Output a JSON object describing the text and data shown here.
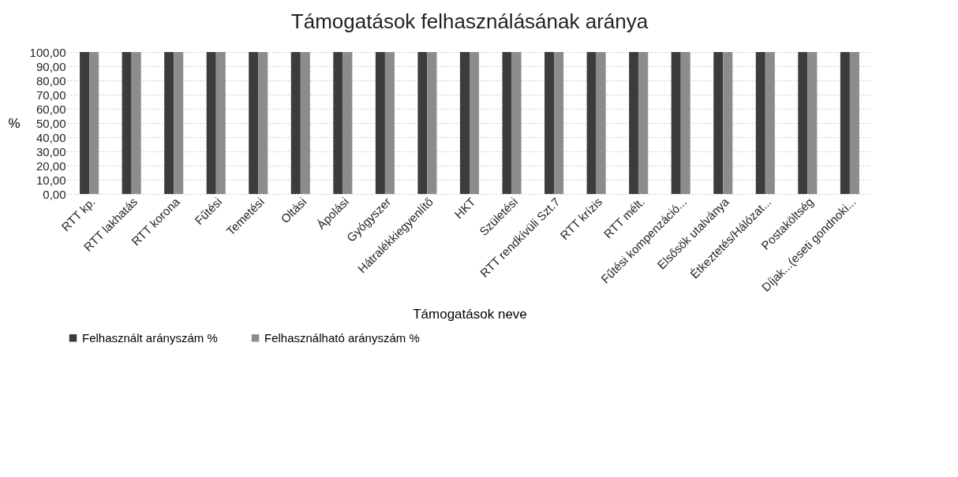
{
  "chart_data": {
    "type": "bar",
    "title": "Támogatások felhasználásának aránya",
    "xlabel": "Támogatások neve",
    "ylabel": "%",
    "categories": [
      "RTT kp.",
      "RTT lakhatás",
      "RTT korona",
      "Fűtési",
      "Temetési",
      "Oltási",
      "Ápolási",
      "Gyógyszer",
      "Hátralékkiegyenlítő",
      "HKT",
      "Születési",
      "RTT rendkívüli Szt.7",
      "RTT krízis",
      "RTT mélt.",
      "Fűtési kompenzáció...",
      "Elsősök utalványa",
      "Étkeztetés/Hálózat...",
      "Postaköltség",
      "Díjak...(eseti gondnoki..."
    ],
    "series": [
      {
        "name": "Felhasznált arányszám %",
        "color": "#3c3c3c",
        "values": [
          100,
          100,
          100,
          100,
          100,
          100,
          100,
          100,
          100,
          100,
          100,
          100,
          100,
          100,
          100,
          100,
          100,
          100,
          100
        ]
      },
      {
        "name": "Felhasználható arányszám %",
        "color": "#8c8c8c",
        "values": [
          100,
          100,
          100,
          100,
          100,
          100,
          100,
          100,
          100,
          100,
          100,
          100,
          100,
          100,
          100,
          100,
          100,
          100,
          100
        ]
      }
    ],
    "ylim": [
      0,
      100
    ],
    "yticks": [
      {
        "value": 0,
        "label": "0,00"
      },
      {
        "value": 10,
        "label": "10,00"
      },
      {
        "value": 20,
        "label": "20,00"
      },
      {
        "value": 30,
        "label": "30,00"
      },
      {
        "value": 40,
        "label": "40,00"
      },
      {
        "value": 50,
        "label": "50,00"
      },
      {
        "value": 60,
        "label": "60,00"
      },
      {
        "value": 70,
        "label": "70,00"
      },
      {
        "value": 80,
        "label": "80,00"
      },
      {
        "value": 90,
        "label": "90,00"
      },
      {
        "value": 100,
        "label": "100,00"
      }
    ],
    "grid": "y",
    "legend": "bottom"
  }
}
